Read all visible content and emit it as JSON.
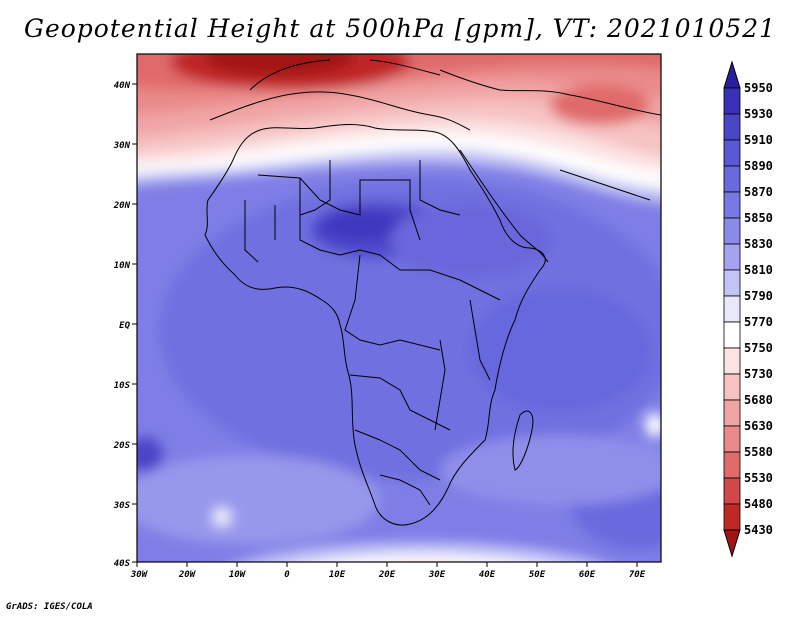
{
  "title": "Geopotential Height at 500hPa [gpm], VT: 2021010521",
  "credit": "GrADS: IGES/COLA",
  "map": {
    "lat_ticks": [
      "40N",
      "30N",
      "20N",
      "10N",
      "EQ",
      "10S",
      "20S",
      "30S",
      "40S"
    ],
    "lon_ticks": [
      "30W",
      "20W",
      "10W",
      "0",
      "10E",
      "20E",
      "30E",
      "40E",
      "50E",
      "60E",
      "70E"
    ]
  },
  "colorbar": {
    "levels": [
      "5950",
      "5930",
      "5910",
      "5890",
      "5870",
      "5850",
      "5830",
      "5810",
      "5790",
      "5770",
      "5750",
      "5730",
      "5680",
      "5630",
      "5580",
      "5530",
      "5480",
      "5430"
    ],
    "colors": [
      "#2b1ea0",
      "#3a31b8",
      "#4b45c8",
      "#5b58d6",
      "#6a6ade",
      "#7878e4",
      "#8a8aea",
      "#a3a3f0",
      "#c3c3f6",
      "#e8e8fb",
      "#ffffff",
      "#fbe3e3",
      "#f6c2c2",
      "#f0a5a5",
      "#ea8a8a",
      "#e06b6b",
      "#d24747",
      "#c02828",
      "#a31515"
    ]
  }
}
